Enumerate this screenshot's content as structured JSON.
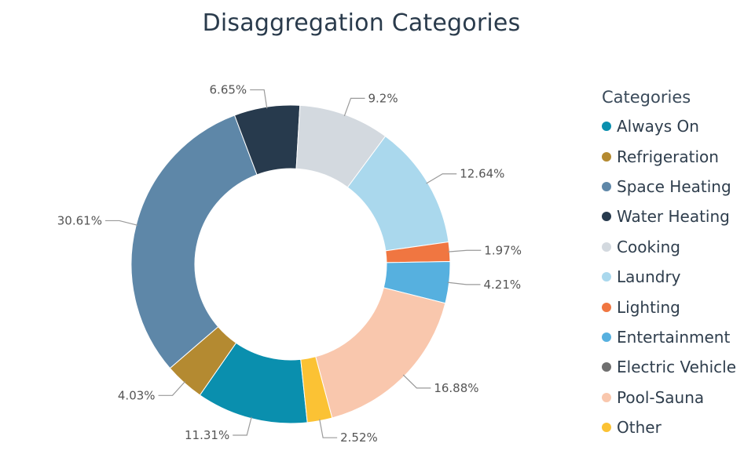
{
  "chart_data": {
    "type": "pie",
    "title": "Disaggregation Categories",
    "donut": true,
    "legend": {
      "title": "Categories",
      "position": "right"
    },
    "categories": [
      "Always On",
      "Refrigeration",
      "Space Heating",
      "Water Heating",
      "Cooking",
      "Laundry",
      "Lighting",
      "Entertainment",
      "Electric Vehicle",
      "Pool-Sauna",
      "Other"
    ],
    "values": [
      11.31,
      4.03,
      30.61,
      6.65,
      9.2,
      12.64,
      1.97,
      4.21,
      0,
      16.88,
      2.52
    ],
    "labels": [
      "11.31%",
      "4.03%",
      "30.61%",
      "6.65%",
      "9.2%",
      "12.64%",
      "1.97%",
      "4.21%",
      "",
      "16.88%",
      "2.52%"
    ],
    "colors": [
      "#0a8fae",
      "#b48a31",
      "#5e87a8",
      "#273a4d",
      "#d3d9df",
      "#aad8ed",
      "#f07641",
      "#56b0df",
      "#6f6f6f",
      "#f9c7ad",
      "#fbc234"
    ]
  }
}
